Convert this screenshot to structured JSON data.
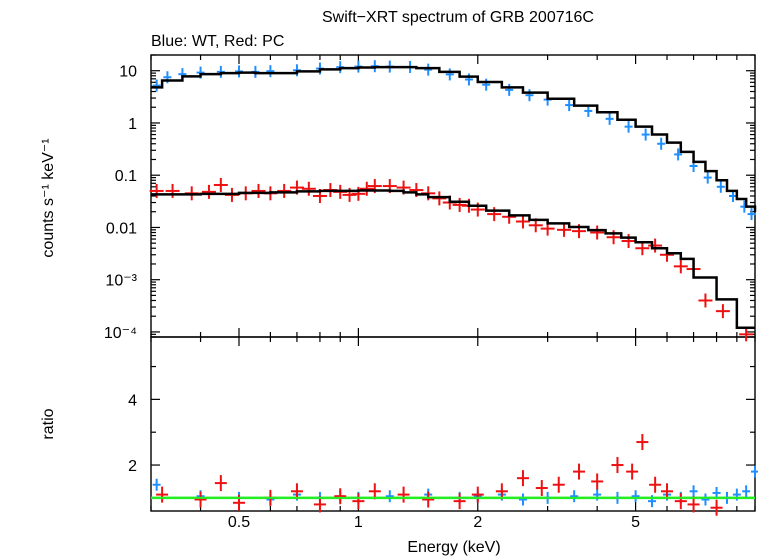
{
  "chart_data": {
    "type": "scatter",
    "title": "Swift−XRT spectrum of GRB 200716C",
    "subtitle": "Blue: WT, Red: PC",
    "xlabel": "Energy (keV)",
    "xscale": "log",
    "xlim": [
      0.3,
      10
    ],
    "xticks": [
      {
        "v": 0.5,
        "label": "0.5"
      },
      {
        "v": 1,
        "label": "1"
      },
      {
        "v": 2,
        "label": "2"
      },
      {
        "v": 5,
        "label": "5"
      }
    ],
    "panels": [
      {
        "name": "spectrum",
        "ylabel": "counts s⁻¹ keV⁻¹",
        "yscale": "log",
        "ylim": [
          8e-05,
          20
        ],
        "yticks": [
          {
            "v": 10,
            "label": "10"
          },
          {
            "v": 1,
            "label": "1"
          },
          {
            "v": 0.1,
            "label": "0.1"
          },
          {
            "v": 0.01,
            "label": "0.01"
          },
          {
            "v": 0.001,
            "label": "10⁻³"
          },
          {
            "v": 0.0001,
            "label": "10⁻⁴"
          }
        ],
        "series": [
          {
            "name": "WT",
            "color": "#1f8fff",
            "kind": "data",
            "points": [
              [
                0.31,
                5.2
              ],
              [
                0.33,
                7.5
              ],
              [
                0.36,
                8.6
              ],
              [
                0.4,
                9.2
              ],
              [
                0.45,
                9.5
              ],
              [
                0.5,
                9.7
              ],
              [
                0.55,
                9.5
              ],
              [
                0.6,
                9.8
              ],
              [
                0.7,
                10.2
              ],
              [
                0.8,
                11.0
              ],
              [
                0.9,
                11.7
              ],
              [
                1.0,
                12.0
              ],
              [
                1.1,
                12.2
              ],
              [
                1.2,
                12.0
              ],
              [
                1.35,
                11.8
              ],
              [
                1.5,
                10.5
              ],
              [
                1.7,
                8.5
              ],
              [
                1.9,
                6.8
              ],
              [
                2.1,
                5.4
              ],
              [
                2.4,
                4.3
              ],
              [
                2.7,
                3.4
              ],
              [
                3.0,
                2.8
              ],
              [
                3.4,
                2.2
              ],
              [
                3.8,
                1.7
              ],
              [
                4.3,
                1.2
              ],
              [
                4.8,
                0.85
              ],
              [
                5.3,
                0.6
              ],
              [
                5.8,
                0.4
              ],
              [
                6.4,
                0.25
              ],
              [
                7.0,
                0.15
              ],
              [
                7.6,
                0.09
              ],
              [
                8.2,
                0.06
              ],
              [
                8.8,
                0.04
              ],
              [
                9.4,
                0.025
              ],
              [
                9.8,
                0.018
              ]
            ]
          },
          {
            "name": "PC",
            "color": "#ee1111",
            "kind": "data",
            "points": [
              [
                0.31,
                0.05
              ],
              [
                0.34,
                0.05
              ],
              [
                0.38,
                0.045
              ],
              [
                0.42,
                0.048
              ],
              [
                0.45,
                0.065
              ],
              [
                0.48,
                0.042
              ],
              [
                0.52,
                0.045
              ],
              [
                0.56,
                0.05
              ],
              [
                0.6,
                0.045
              ],
              [
                0.65,
                0.05
              ],
              [
                0.7,
                0.058
              ],
              [
                0.75,
                0.055
              ],
              [
                0.8,
                0.04
              ],
              [
                0.85,
                0.052
              ],
              [
                0.9,
                0.048
              ],
              [
                0.95,
                0.042
              ],
              [
                1.0,
                0.044
              ],
              [
                1.05,
                0.055
              ],
              [
                1.1,
                0.062
              ],
              [
                1.2,
                0.062
              ],
              [
                1.3,
                0.058
              ],
              [
                1.4,
                0.052
              ],
              [
                1.5,
                0.045
              ],
              [
                1.6,
                0.036
              ],
              [
                1.7,
                0.03
              ],
              [
                1.8,
                0.027
              ],
              [
                1.9,
                0.026
              ],
              [
                2.0,
                0.022
              ],
              [
                2.2,
                0.018
              ],
              [
                2.4,
                0.016
              ],
              [
                2.6,
                0.013
              ],
              [
                2.8,
                0.011
              ],
              [
                3.0,
                0.0095
              ],
              [
                3.3,
                0.009
              ],
              [
                3.6,
                0.0085
              ],
              [
                4.0,
                0.008
              ],
              [
                4.4,
                0.0065
              ],
              [
                4.8,
                0.0055
              ],
              [
                5.2,
                0.004
              ],
              [
                5.6,
                0.0045
              ],
              [
                6.0,
                0.003
              ],
              [
                6.5,
                0.0018
              ],
              [
                7.0,
                0.0016
              ],
              [
                7.5,
                0.0004
              ],
              [
                8.3,
                0.00025
              ],
              [
                9.5,
                9e-05
              ]
            ]
          },
          {
            "name": "WT model",
            "color": "#000000",
            "kind": "model",
            "points": [
              [
                0.3,
                4.8
              ],
              [
                0.32,
                6.5
              ],
              [
                0.36,
                7.8
              ],
              [
                0.4,
                8.6
              ],
              [
                0.45,
                9.0
              ],
              [
                0.5,
                9.2
              ],
              [
                0.55,
                9.0
              ],
              [
                0.6,
                9.0
              ],
              [
                0.7,
                9.7
              ],
              [
                0.8,
                10.6
              ],
              [
                0.9,
                11.2
              ],
              [
                1.0,
                11.5
              ],
              [
                1.1,
                11.7
              ],
              [
                1.25,
                11.7
              ],
              [
                1.4,
                11.2
              ],
              [
                1.6,
                9.5
              ],
              [
                1.8,
                7.7
              ],
              [
                2.0,
                6.1
              ],
              [
                2.3,
                4.8
              ],
              [
                2.6,
                3.8
              ],
              [
                3.0,
                2.9
              ],
              [
                3.5,
                2.15
              ],
              [
                4.0,
                1.6
              ],
              [
                4.5,
                1.15
              ],
              [
                5.0,
                0.85
              ],
              [
                5.5,
                0.6
              ],
              [
                6.0,
                0.42
              ],
              [
                6.5,
                0.28
              ],
              [
                7.0,
                0.18
              ],
              [
                7.5,
                0.12
              ],
              [
                8.0,
                0.08
              ],
              [
                8.5,
                0.05
              ],
              [
                9.0,
                0.035
              ],
              [
                9.5,
                0.025
              ],
              [
                10.0,
                0.02
              ]
            ]
          },
          {
            "name": "PC model",
            "color": "#000000",
            "kind": "model",
            "points": [
              [
                0.3,
                0.043
              ],
              [
                0.4,
                0.044
              ],
              [
                0.5,
                0.046
              ],
              [
                0.6,
                0.047
              ],
              [
                0.7,
                0.049
              ],
              [
                0.8,
                0.05
              ],
              [
                0.9,
                0.05
              ],
              [
                1.0,
                0.051
              ],
              [
                1.1,
                0.051
              ],
              [
                1.2,
                0.05
              ],
              [
                1.3,
                0.047
              ],
              [
                1.4,
                0.043
              ],
              [
                1.5,
                0.038
              ],
              [
                1.7,
                0.031
              ],
              [
                1.9,
                0.026
              ],
              [
                2.1,
                0.021
              ],
              [
                2.4,
                0.017
              ],
              [
                2.7,
                0.014
              ],
              [
                3.0,
                0.012
              ],
              [
                3.4,
                0.0102
              ],
              [
                3.8,
                0.0089
              ],
              [
                4.2,
                0.0077
              ],
              [
                4.6,
                0.0064
              ],
              [
                5.0,
                0.0052
              ],
              [
                5.5,
                0.004
              ],
              [
                6.0,
                0.0032
              ],
              [
                6.5,
                0.0025
              ],
              [
                7.0,
                0.0011
              ],
              [
                7.5,
                0.0011
              ],
              [
                8.0,
                0.00042
              ],
              [
                8.5,
                0.00042
              ],
              [
                9.0,
                0.00012
              ],
              [
                10.0,
                0.00012
              ]
            ]
          }
        ]
      },
      {
        "name": "ratio",
        "ylabel": "ratio",
        "yscale": "linear",
        "ylim": [
          0.6,
          5.9
        ],
        "yticks": [
          {
            "v": 2,
            "label": "2"
          },
          {
            "v": 4,
            "label": "4"
          }
        ],
        "reference_line": {
          "y": 1,
          "color": "#22ee22"
        },
        "series": [
          {
            "name": "WT",
            "color": "#1f8fff",
            "points": [
              [
                0.31,
                1.4
              ],
              [
                0.4,
                1.05
              ],
              [
                0.5,
                1.0
              ],
              [
                0.6,
                0.95
              ],
              [
                0.7,
                1.1
              ],
              [
                0.8,
                1.0
              ],
              [
                0.9,
                1.05
              ],
              [
                1.0,
                1.0
              ],
              [
                1.2,
                1.05
              ],
              [
                1.5,
                1.1
              ],
              [
                1.8,
                1.0
              ],
              [
                2.0,
                1.05
              ],
              [
                2.3,
                1.1
              ],
              [
                2.6,
                0.95
              ],
              [
                3.0,
                1.0
              ],
              [
                3.5,
                1.05
              ],
              [
                4.0,
                1.1
              ],
              [
                4.5,
                1.0
              ],
              [
                5.0,
                1.05
              ],
              [
                5.5,
                0.9
              ],
              [
                6.0,
                1.1
              ],
              [
                6.5,
                1.0
              ],
              [
                7.0,
                1.2
              ],
              [
                7.5,
                0.95
              ],
              [
                8.0,
                1.15
              ],
              [
                8.5,
                1.0
              ],
              [
                9.0,
                1.1
              ],
              [
                9.5,
                1.2
              ],
              [
                10.0,
                1.8
              ]
            ]
          },
          {
            "name": "PC",
            "color": "#ee1111",
            "points": [
              [
                0.32,
                1.1
              ],
              [
                0.4,
                0.95
              ],
              [
                0.45,
                1.45
              ],
              [
                0.5,
                0.85
              ],
              [
                0.6,
                1.0
              ],
              [
                0.7,
                1.2
              ],
              [
                0.8,
                0.8
              ],
              [
                0.9,
                1.05
              ],
              [
                1.0,
                0.9
              ],
              [
                1.1,
                1.2
              ],
              [
                1.3,
                1.1
              ],
              [
                1.5,
                0.95
              ],
              [
                1.8,
                0.9
              ],
              [
                2.0,
                1.1
              ],
              [
                2.3,
                1.2
              ],
              [
                2.6,
                1.6
              ],
              [
                2.9,
                1.3
              ],
              [
                3.2,
                1.4
              ],
              [
                3.6,
                1.8
              ],
              [
                4.0,
                1.5
              ],
              [
                4.5,
                2.0
              ],
              [
                4.9,
                1.8
              ],
              [
                5.2,
                2.7
              ],
              [
                5.6,
                1.4
              ],
              [
                6.0,
                1.2
              ],
              [
                6.5,
                0.9
              ],
              [
                7.0,
                0.8
              ],
              [
                8.0,
                0.7
              ]
            ]
          }
        ]
      }
    ]
  }
}
